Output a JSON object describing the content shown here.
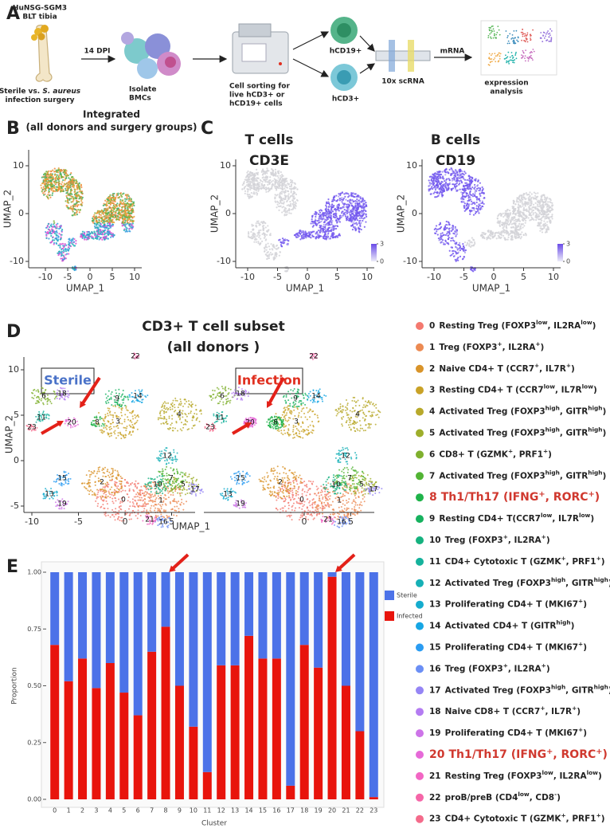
{
  "panel_labels": [
    "A",
    "B",
    "C",
    "D",
    "E"
  ],
  "workflow": {
    "source": [
      "HuNSG-SGM3",
      "BLT tibia"
    ],
    "surgery": [
      [
        "Sterile vs. ",
        "S. aureus"
      ],
      [
        "infection surgery"
      ]
    ],
    "timepoint": "14 DPI",
    "isolate": [
      "Isolate",
      "BMCs"
    ],
    "sorting": [
      "Cell sorting for",
      "live hCD3+ or",
      "hCD19+ cells"
    ],
    "b_cells": "hCD19+",
    "t_cells": "hCD3+",
    "sequencing": "10x scRNA",
    "mrna": "mRNA",
    "analysis": [
      "expression",
      "analysis"
    ]
  },
  "B": {
    "title": [
      "Integrated",
      "(all donors and surgery groups)"
    ],
    "xlabel": "UMAP_1",
    "ylabel": "UMAP_2",
    "xticks": [
      -10,
      -5,
      0,
      5,
      10
    ],
    "yticks": [
      10,
      0,
      -10
    ]
  },
  "C": {
    "panels": [
      {
        "title": [
          "T cells",
          "CD3E"
        ],
        "xlabel": "UMAP_1",
        "ylabel": "UMAP_2",
        "xticks": [
          -10,
          -5,
          0,
          5,
          10
        ],
        "yticks": [
          10,
          0,
          -10
        ],
        "colorbar_ticks": [
          0,
          3
        ],
        "highlight": "T"
      },
      {
        "title": [
          "B cells",
          "CD19"
        ],
        "xlabel": "UMAP_1",
        "ylabel": "UMAP_2",
        "xticks": [
          -10,
          -5,
          0,
          5,
          10
        ],
        "yticks": [
          10,
          0,
          -10
        ],
        "colorbar_ticks": [
          0,
          3
        ],
        "highlight": "B"
      }
    ]
  },
  "D": {
    "title": [
      "CD3+ T cell subset",
      "(all donors )"
    ],
    "groups": [
      "Sterile",
      "Infection"
    ],
    "xlabel": "UMAP_1",
    "ylabel": "UMAP_2",
    "xticks": [
      -10,
      -5,
      0,
      5
    ],
    "xticks_right": [
      0,
      5
    ],
    "yticks": [
      10,
      5,
      0,
      -5
    ]
  },
  "legend": {
    "items": [
      {
        "id": "0",
        "parts": [
          "Resting Treg (FOXP3",
          "low",
          ", IL2RA",
          "low",
          ")"
        ],
        "color": "#f4796f"
      },
      {
        "id": "1",
        "parts": [
          "Treg (FOXP3",
          "+",
          ", IL2RA",
          "+",
          ")"
        ],
        "color": "#ec8a52"
      },
      {
        "id": "2",
        "parts": [
          "Naive CD4+ T (CCR7",
          "+",
          ", IL7R",
          "+",
          ")"
        ],
        "color": "#d9942a"
      },
      {
        "id": "3",
        "parts": [
          "Resting CD4+ T (CCR7",
          "low",
          ", IL7R",
          "low",
          ")"
        ],
        "color": "#c9a227"
      },
      {
        "id": "4",
        "parts": [
          "Activated Treg (FOXP3",
          "high",
          ", GITR",
          "high",
          ")"
        ],
        "color": "#b8a92b"
      },
      {
        "id": "5",
        "parts": [
          "Activated Treg (FOXP3",
          "high",
          ", GITR",
          "high",
          ")"
        ],
        "color": "#9eae2b"
      },
      {
        "id": "6",
        "parts": [
          "CD8+ T (GZMK",
          "+",
          ", PRF1",
          "+",
          ")"
        ],
        "color": "#7fb02e"
      },
      {
        "id": "7",
        "parts": [
          "Activated Treg (FOXP3",
          "high",
          ", GITR",
          "high",
          ")"
        ],
        "color": "#52b434"
      },
      {
        "id": "8",
        "parts": [
          "Th1/Th17 (IFNG",
          "+",
          ", RORC",
          "+",
          ")"
        ],
        "color": "#1fb34a",
        "emphasis": true
      },
      {
        "id": "9",
        "parts": [
          "Resting CD4+ T(CCR7",
          "low",
          ", IL7R",
          "low",
          ")"
        ],
        "color": "#17b25f"
      },
      {
        "id": "10",
        "parts": [
          "Treg (FOXP3",
          "+",
          ", IL2RA",
          "+",
          ")"
        ],
        "color": "#15b27f"
      },
      {
        "id": "11",
        "parts": [
          "CD4+ Cytotoxic T (GZMK",
          "+",
          ", PRF1",
          "+",
          ")"
        ],
        "color": "#15b29c"
      },
      {
        "id": "12",
        "parts": [
          "Activated Treg (FOXP3",
          "high",
          ", GITR",
          "high",
          ")"
        ],
        "color": "#16b0b6"
      },
      {
        "id": "13",
        "parts": [
          "Proliferating CD4+ T (MKI67",
          "+",
          ")"
        ],
        "color": "#15acce"
      },
      {
        "id": "14",
        "parts": [
          "Activated CD4+ T (GITR",
          "high",
          ")"
        ],
        "color": "#16a6e4"
      },
      {
        "id": "15",
        "parts": [
          "Proliferating CD4+ T (MKI67",
          "+",
          ")"
        ],
        "color": "#2a9cf2"
      },
      {
        "id": "16",
        "parts": [
          "Treg (FOXP3",
          "+",
          ", IL2RA",
          "+",
          ")"
        ],
        "color": "#6b8ff5"
      },
      {
        "id": "17",
        "parts": [
          "Activated Treg (FOXP3",
          "high",
          ", GITR",
          "high",
          ")"
        ],
        "color": "#9585f5"
      },
      {
        "id": "18",
        "parts": [
          "Naive CD8+ T (CCR7",
          "+",
          ", IL7R",
          "+",
          ")"
        ],
        "color": "#b47cf2"
      },
      {
        "id": "19",
        "parts": [
          "Proliferating CD4+ T (MKI67",
          "+",
          ")"
        ],
        "color": "#cd74e8"
      },
      {
        "id": "20",
        "parts": [
          "Th1/Th17 (IFNG",
          "+",
          ", RORC",
          "+",
          ")"
        ],
        "color": "#e66ad8",
        "emphasis": true
      },
      {
        "id": "21",
        "parts": [
          "Resting Treg (FOXP3",
          "low",
          ", IL2RA",
          "low",
          ")"
        ],
        "color": "#f266c4"
      },
      {
        "id": "22",
        "parts": [
          "proB/preB (CD4",
          "low",
          ", CD8",
          "-",
          ")"
        ],
        "color": "#f566a8"
      },
      {
        "id": "23",
        "parts": [
          "CD4+ Cytotoxic T (GZMK",
          "+",
          ", PRF1",
          "+",
          ")"
        ],
        "color": "#f46b8b"
      }
    ]
  },
  "chart_data": {
    "type": "bar",
    "stacked": true,
    "xlabel": "Cluster",
    "ylabel": "Proportion",
    "legend": "right",
    "categories": [
      "0",
      "1",
      "2",
      "3",
      "4",
      "5",
      "6",
      "7",
      "8",
      "9",
      "10",
      "11",
      "12",
      "13",
      "14",
      "15",
      "16",
      "17",
      "18",
      "19",
      "20",
      "21",
      "22",
      "23"
    ],
    "series": [
      {
        "name": "Infected",
        "color": "#e8140c",
        "values": [
          0.68,
          0.52,
          0.62,
          0.49,
          0.6,
          0.47,
          0.37,
          0.65,
          0.76,
          0.5,
          0.32,
          0.12,
          0.59,
          0.59,
          0.72,
          0.62,
          0.62,
          0.06,
          0.68,
          0.58,
          0.98,
          0.5,
          0.3,
          0.01
        ]
      },
      {
        "name": "Sterile",
        "color": "#4c72e8",
        "values": [
          0.32,
          0.48,
          0.38,
          0.51,
          0.4,
          0.53,
          0.63,
          0.35,
          0.24,
          0.5,
          0.68,
          0.88,
          0.41,
          0.41,
          0.28,
          0.38,
          0.38,
          0.94,
          0.32,
          0.42,
          0.02,
          0.5,
          0.7,
          0.99
        ]
      }
    ],
    "ylim": [
      0,
      1
    ],
    "yticks": [
      {
        "value": 0,
        "label": "0.00"
      },
      {
        "value": 0.25,
        "label": "0.25"
      },
      {
        "value": 0.5,
        "label": "0.50"
      },
      {
        "value": 0.75,
        "label": "0.75"
      },
      {
        "value": 1,
        "label": "1.00"
      }
    ]
  }
}
